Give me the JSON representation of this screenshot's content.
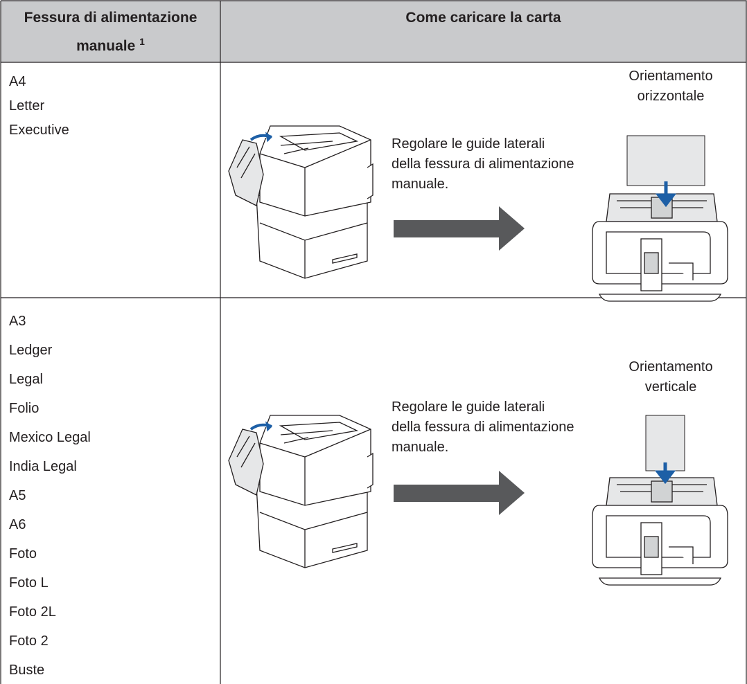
{
  "header": {
    "col1": "Fessura di alimentazione manuale",
    "col1_note": "1",
    "col2": "Come caricare la carta"
  },
  "rows": [
    {
      "sizes": [
        "A4",
        "Letter",
        "Executive"
      ],
      "instruction": "Regolare le guide laterali della fessura di alimentazione manuale.",
      "orientation": "Orientamento orizzontale"
    },
    {
      "sizes": [
        "A3",
        "Ledger",
        "Legal",
        "Folio",
        "Mexico Legal",
        "India Legal",
        "A5",
        "A6",
        "Foto",
        "Foto L",
        "Foto 2L",
        "Foto 2",
        "Buste"
      ],
      "instruction": "Regolare le guide laterali della fessura di alimentazione manuale.",
      "orientation": "Orientamento verticale"
    }
  ]
}
